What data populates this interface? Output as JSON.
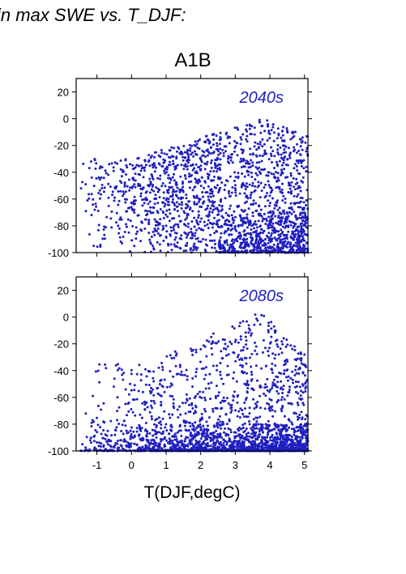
{
  "header": {
    "text": "in max SWE vs. T_DJF:"
  },
  "figure_title": "A1B",
  "chart_data": [
    {
      "type": "scatter",
      "panel_label": "2040s",
      "point_count": 2000,
      "seed": 2040,
      "color": "#1f1fbf",
      "xlim": [
        -1.6,
        5.1
      ],
      "ylim": [
        -100,
        30
      ],
      "xticks": [
        -1,
        0,
        1,
        2,
        3,
        4,
        5
      ],
      "yticks": [
        20,
        0,
        -20,
        -40,
        -60,
        -80,
        -100
      ],
      "xlabel": "",
      "ylabel": "",
      "show_xticklabels": false
    },
    {
      "type": "scatter",
      "panel_label": "2080s",
      "point_count": 2300,
      "seed": 2080,
      "color": "#1f1fbf",
      "xlim": [
        -1.6,
        5.1
      ],
      "ylim": [
        -100,
        30
      ],
      "xticks": [
        -1,
        0,
        1,
        2,
        3,
        4,
        5
      ],
      "yticks": [
        20,
        0,
        -20,
        -40,
        -60,
        -80,
        -100
      ],
      "xlabel": "T(DJF,degC)",
      "ylabel": "",
      "show_xticklabels": true
    }
  ]
}
